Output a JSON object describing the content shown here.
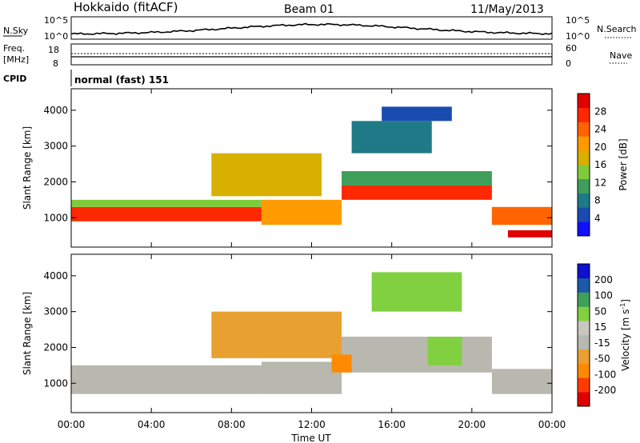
{
  "header": {
    "title": "Hokkaido (fitACF)",
    "beam": "Beam 01",
    "date": "11/May/2013"
  },
  "status_panels": {
    "nsky_label": "N.Sky",
    "nsearch_label": "N.Search",
    "log_tick_top": "10^5",
    "log_tick_bottom": "10^0",
    "freq_label_line1": "Freq.",
    "freq_label_line2": "[MHz]",
    "freq_ticks": [
      "18",
      "8"
    ],
    "nave_label": "Nave",
    "nave_ticks": [
      "60",
      "0"
    ],
    "cpid_label": "CPID",
    "cpid_text": "normal (fast) 151"
  },
  "colors": {
    "power_scale": [
      "#1010ff",
      "#1a4bb0",
      "#1f7a88",
      "#3f9e5a",
      "#7fcc3a",
      "#d8b000",
      "#ff9a00",
      "#ff6400",
      "#ff2800",
      "#e00000"
    ],
    "velocity_scale": [
      "#e00000",
      "#ff3c00",
      "#ff8a00",
      "#e8a030",
      "#b8b8ae",
      "#c8c8c0",
      "#80d040",
      "#3fa05a",
      "#1a5aa8",
      "#1010d0"
    ]
  },
  "power_colorbar": {
    "label": "Power [dB]",
    "ticks": [
      "4",
      "8",
      "12",
      "16",
      "20",
      "24",
      "28"
    ]
  },
  "velocity_colorbar": {
    "label": "Velocity [m s",
    "label_sup": "-1",
    "label_end": "]",
    "ticks": [
      "-200",
      "-100",
      "-50",
      "-15",
      "15",
      "50",
      "100",
      "200"
    ]
  },
  "axes": {
    "ylabel": "Slant Range [km]",
    "xlabel": "Time UT",
    "yticks": [
      "1000",
      "2000",
      "3000",
      "4000"
    ],
    "xticks": [
      "00:00",
      "04:00",
      "08:00",
      "12:00",
      "16:00",
      "20:00",
      "00:00"
    ]
  },
  "chart_data": [
    {
      "type": "heatmap",
      "title": "Power",
      "x_unit": "hours UT",
      "xlim": [
        0,
        24
      ],
      "ylim": [
        180,
        4600
      ],
      "yticks": [
        1000,
        2000,
        3000,
        4000
      ],
      "xticks": [
        0,
        4,
        8,
        12,
        16,
        20,
        24
      ],
      "colorbar": {
        "label": "Power [dB]",
        "ticks": [
          4,
          8,
          12,
          16,
          20,
          24,
          28
        ],
        "range": [
          0,
          32
        ]
      },
      "bands": [
        {
          "start_hour": 0.0,
          "end_hour": 9.5,
          "range_low_km": 900,
          "range_high_km": 1300,
          "power_db": 26
        },
        {
          "start_hour": 0.0,
          "end_hour": 9.5,
          "range_low_km": 1300,
          "range_high_km": 1500,
          "power_db": 14
        },
        {
          "start_hour": 9.5,
          "end_hour": 13.5,
          "range_low_km": 800,
          "range_high_km": 1500,
          "power_db": 20
        },
        {
          "start_hour": 13.5,
          "end_hour": 21.0,
          "range_low_km": 1500,
          "range_high_km": 1900,
          "power_db": 27
        },
        {
          "start_hour": 13.5,
          "end_hour": 21.0,
          "range_low_km": 1900,
          "range_high_km": 2300,
          "power_db": 12
        },
        {
          "start_hour": 21.0,
          "end_hour": 24.0,
          "range_low_km": 800,
          "range_high_km": 1300,
          "power_db": 24
        },
        {
          "start_hour": 21.8,
          "end_hour": 24.0,
          "range_low_km": 450,
          "range_high_km": 650,
          "power_db": 29
        },
        {
          "start_hour": 7.0,
          "end_hour": 12.5,
          "range_low_km": 1600,
          "range_high_km": 2800,
          "power_db": 16
        },
        {
          "start_hour": 14.0,
          "end_hour": 18.0,
          "range_low_km": 2800,
          "range_high_km": 3700,
          "power_db": 8
        },
        {
          "start_hour": 15.5,
          "end_hour": 19.0,
          "range_low_km": 3700,
          "range_high_km": 4100,
          "power_db": 6
        }
      ]
    },
    {
      "type": "heatmap",
      "title": "Velocity",
      "x_unit": "hours UT",
      "xlim": [
        0,
        24
      ],
      "ylim": [
        180,
        4600
      ],
      "yticks": [
        1000,
        2000,
        3000,
        4000
      ],
      "xticks": [
        0,
        4,
        8,
        12,
        16,
        20,
        24
      ],
      "colorbar": {
        "label": "Velocity [m s-1]",
        "ticks": [
          -200,
          -100,
          -50,
          -15,
          15,
          50,
          100,
          200
        ]
      },
      "bands": [
        {
          "start_hour": 0.0,
          "end_hour": 9.5,
          "range_low_km": 700,
          "range_high_km": 1500,
          "velocity_ms": 0
        },
        {
          "start_hour": 9.5,
          "end_hour": 13.5,
          "range_low_km": 700,
          "range_high_km": 1600,
          "velocity_ms": 0
        },
        {
          "start_hour": 13.5,
          "end_hour": 21.0,
          "range_low_km": 1300,
          "range_high_km": 2300,
          "velocity_ms": 0
        },
        {
          "start_hour": 21.0,
          "end_hour": 24.0,
          "range_low_km": 700,
          "range_high_km": 1400,
          "velocity_ms": 0
        },
        {
          "start_hour": 7.0,
          "end_hour": 13.5,
          "range_low_km": 1700,
          "range_high_km": 3000,
          "velocity_ms": -40
        },
        {
          "start_hour": 13.0,
          "end_hour": 14.0,
          "range_low_km": 1300,
          "range_high_km": 1800,
          "velocity_ms": -60
        },
        {
          "start_hour": 17.8,
          "end_hour": 19.5,
          "range_low_km": 1500,
          "range_high_km": 2300,
          "velocity_ms": 40
        },
        {
          "start_hour": 15.0,
          "end_hour": 19.5,
          "range_low_km": 3000,
          "range_high_km": 4100,
          "velocity_ms": 30
        }
      ]
    }
  ]
}
